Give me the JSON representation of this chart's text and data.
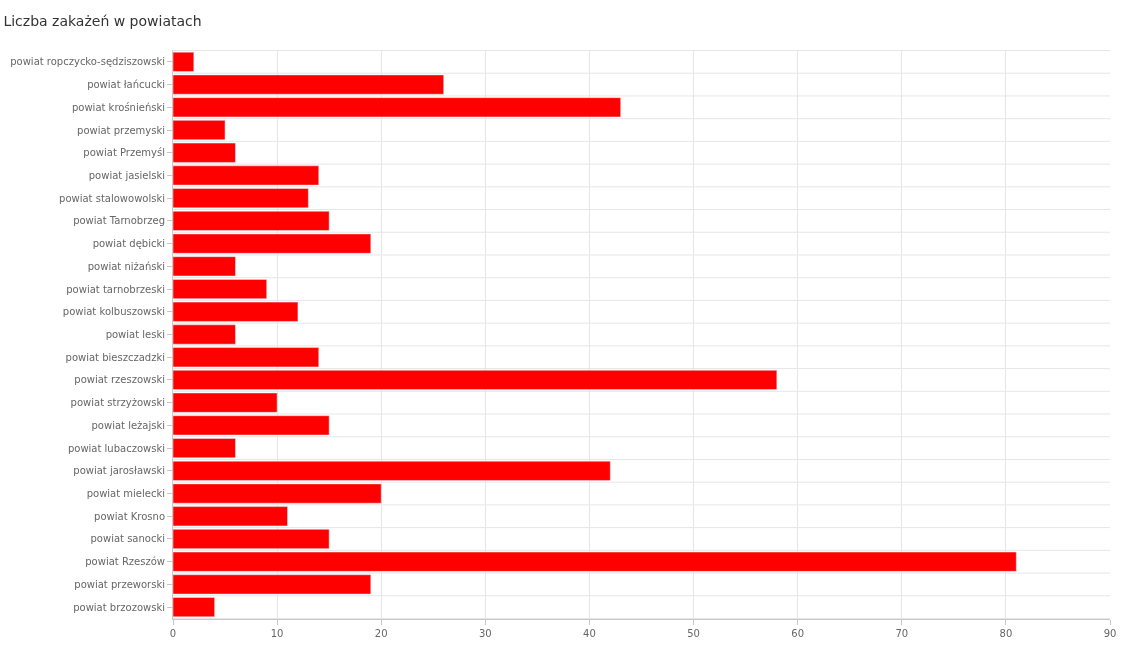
{
  "chart_data": {
    "type": "bar",
    "title": "Liczba zakażeń w powiatach",
    "orientation": "horizontal",
    "categories": [
      "powiat ropczycko-sędziszowski",
      "powiat łańcucki",
      "powiat krośnieński",
      "powiat przemyski",
      "powiat Przemyśl",
      "powiat jasielski",
      "powiat stalowowolski",
      "powiat Tarnobrzeg",
      "powiat dębicki",
      "powiat niżański",
      "powiat tarnobrzeski",
      "powiat kolbuszowski",
      "powiat leski",
      "powiat bieszczadzki",
      "powiat rzeszowski",
      "powiat strzyżowski",
      "powiat leżajski",
      "powiat lubaczowski",
      "powiat jarosławski",
      "powiat mielecki",
      "powiat Krosno",
      "powiat sanocki",
      "powiat Rzeszów",
      "powiat przeworski",
      "powiat brzozowski"
    ],
    "values": [
      2,
      26,
      43,
      5,
      6,
      14,
      13,
      15,
      19,
      6,
      9,
      12,
      6,
      14,
      58,
      10,
      15,
      6,
      42,
      20,
      11,
      15,
      81,
      19,
      4
    ],
    "color": "#ff0000",
    "xlim": [
      0,
      90
    ],
    "xticks": [
      0,
      10,
      20,
      30,
      40,
      50,
      60,
      70,
      80,
      90
    ],
    "grid": true
  }
}
